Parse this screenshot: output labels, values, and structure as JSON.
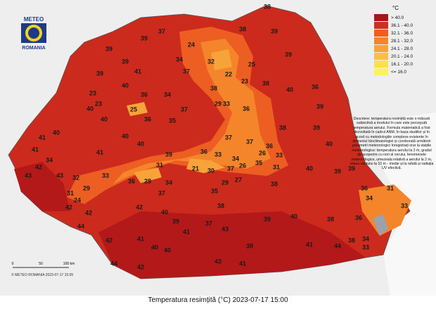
{
  "logo": {
    "top": "METEO",
    "bottom": "ROMANIA"
  },
  "legend": {
    "unit": "°C",
    "classes": [
      {
        "label": "> 40.0",
        "color": "#a8141a"
      },
      {
        "label": "36.1 - 40.0",
        "color": "#d2301e"
      },
      {
        "label": "32.1 - 36.0",
        "color": "#ec5e22"
      },
      {
        "label": "28.1 - 32.0",
        "color": "#f4852b"
      },
      {
        "label": "24.1 - 28.0",
        "color": "#f8a23a"
      },
      {
        "label": "20.1 - 24.0",
        "color": "#fbbf45"
      },
      {
        "label": "16.1 - 20.0",
        "color": "#fde04c"
      },
      {
        "label": "<= 16.0",
        "color": "#fff35a"
      }
    ]
  },
  "description": "Descriere: temperatura resimțită este o măsură subiectivă a modului în care este percepută temperatura aerului. Formula matematică a fost dezvoltată în cadrul ANM, în baza studiilor și în acord cu metodologiile complexe existente în domeniul bioclimatologiei și coroborată următorii parametri meteorologici înregistrați orar la stațiile meteorologice: temperatura aerului la 2 m, gradul de acoperire cu nori al cerului, fenomenele meteorologice, umezeala relativă a aerului la 2 m, viteza vântului la 10 m - medie și la rafală și radiația UV efectivă.",
  "scale": {
    "labels": [
      "0",
      "50",
      "100 km"
    ]
  },
  "copyright": "© METEO ROMANIA 2023-07-17 15:05",
  "caption": "Temperatura resimțită (°C) 2023-07-17 15:00",
  "stations": [
    38,
    37,
    39,
    38,
    39,
    39,
    39,
    24,
    34,
    32,
    22,
    25,
    39,
    41,
    37,
    39,
    23,
    38,
    40,
    23,
    23,
    36,
    34,
    40,
    38,
    29,
    33,
    36,
    25,
    37,
    36,
    39,
    40,
    40,
    40,
    36,
    35,
    37,
    37,
    38,
    39,
    40,
    40,
    41,
    41,
    36,
    36,
    26,
    33,
    41,
    39,
    33,
    34,
    35,
    31,
    40,
    42,
    34,
    31,
    21,
    30,
    37,
    26,
    39,
    39,
    40,
    43,
    43,
    32,
    33,
    31,
    29,
    24,
    36,
    28,
    34,
    29,
    27,
    35,
    38,
    36,
    31,
    34,
    33,
    37,
    38,
    42,
    42,
    44,
    42,
    40,
    39,
    37,
    43,
    39,
    40,
    38,
    36,
    34,
    41,
    41,
    42,
    41,
    40,
    40,
    38,
    44,
    38,
    33,
    44,
    42,
    43,
    41
  ]
}
